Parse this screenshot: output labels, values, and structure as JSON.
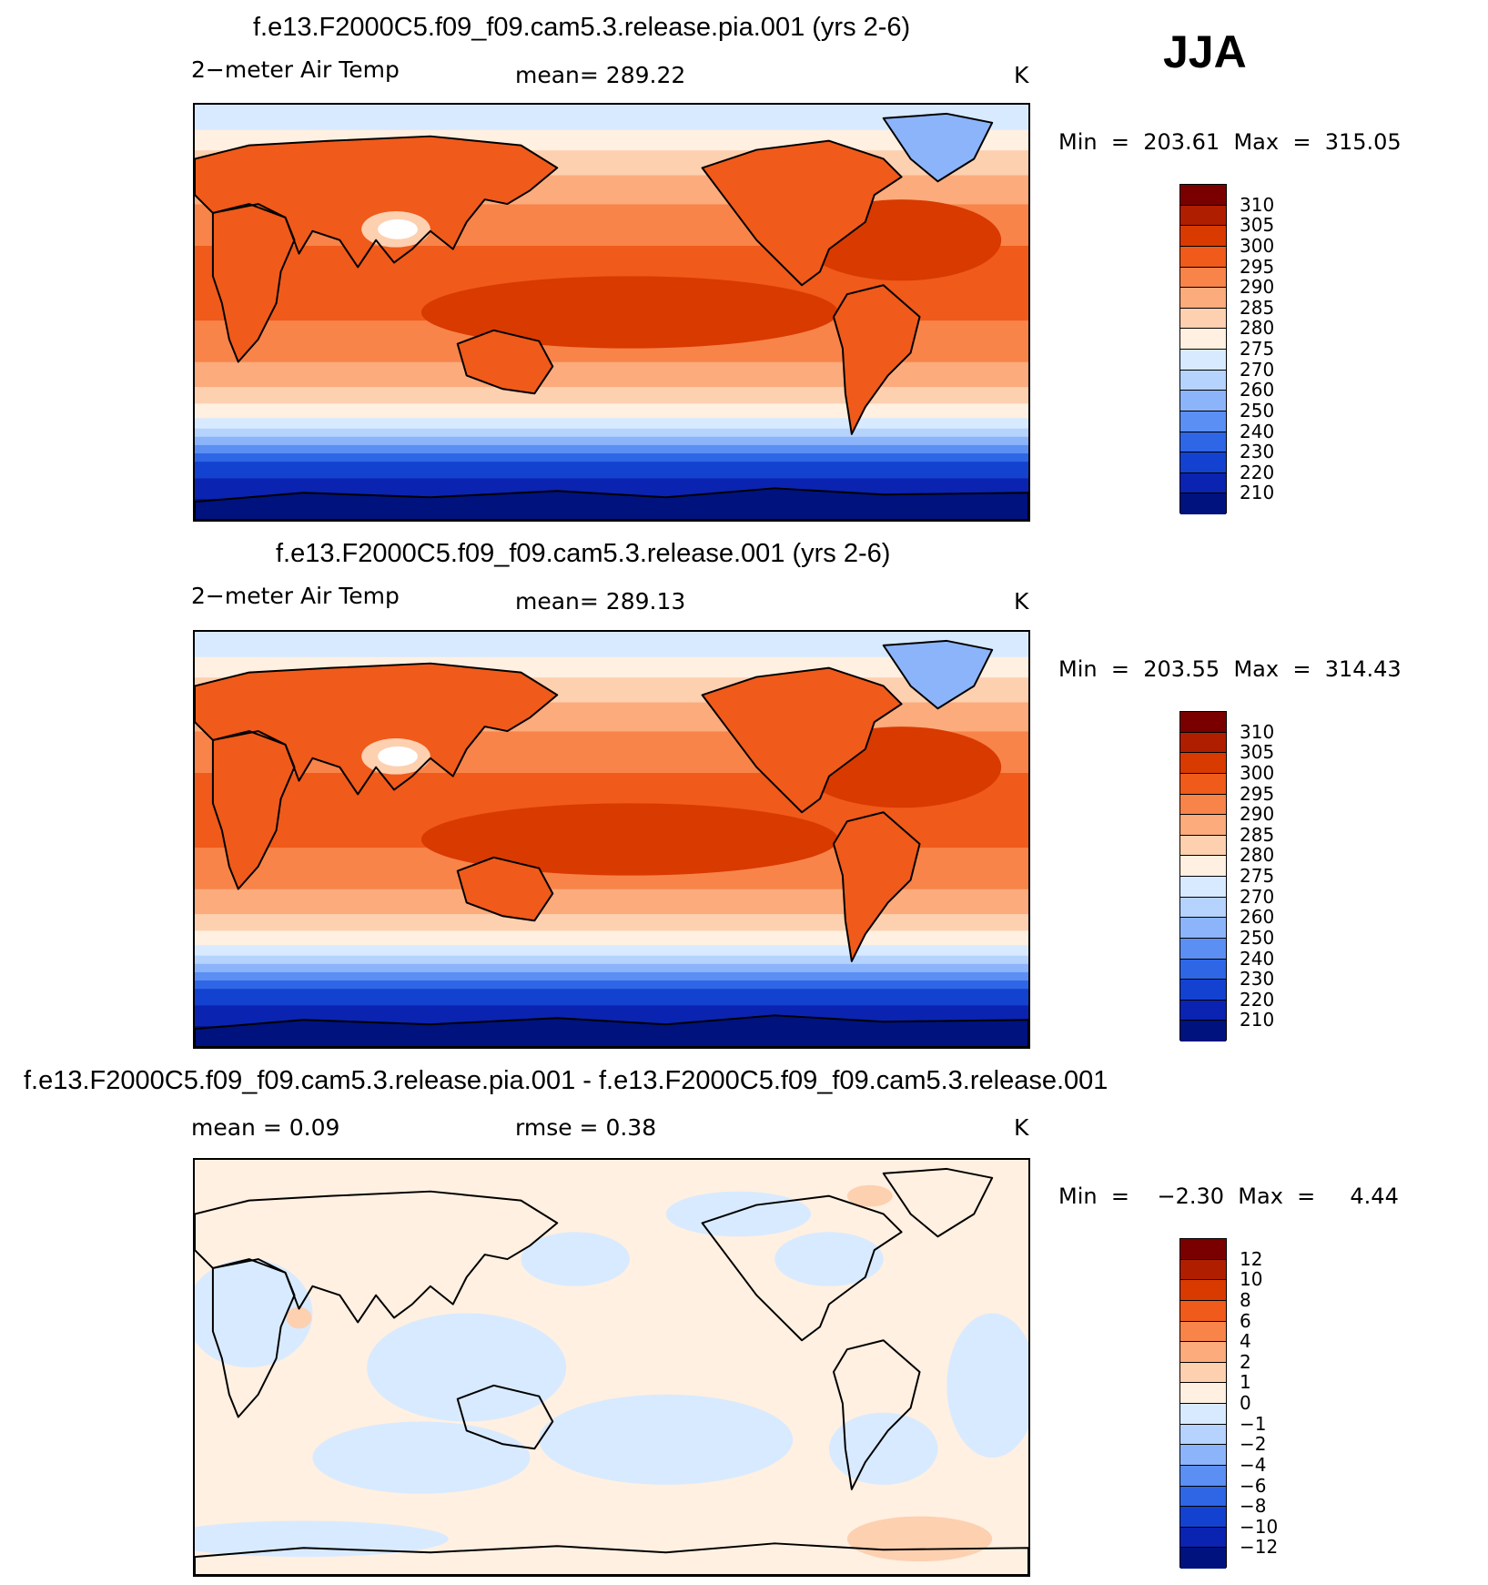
{
  "season": "JJA",
  "panels": [
    {
      "title": "f.e13.F2000C5.f09_f09.cam5.3.release.pia.001 (yrs 2-6)",
      "variable": "2−meter Air Temp",
      "stat": "mean=  289.22",
      "units": "K",
      "minmax": "Min  =  203.61  Max  =  315.05",
      "colorbar": {
        "labels": [
          "310",
          "305",
          "300",
          "295",
          "290",
          "285",
          "280",
          "275",
          "270",
          "260",
          "250",
          "240",
          "230",
          "220",
          "210"
        ],
        "colors": [
          "#7a0000",
          "#b01e00",
          "#d93a00",
          "#f05a1a",
          "#f8844a",
          "#fbab7c",
          "#fdd0b0",
          "#fff0e1",
          "#d8eaff",
          "#b5d3fd",
          "#8cb4fa",
          "#5b8ff3",
          "#2e66e6",
          "#1442d0",
          "#0a23b0",
          "#00127e"
        ]
      },
      "map_style": "absolute"
    },
    {
      "title": "f.e13.F2000C5.f09_f09.cam5.3.release.001 (yrs 2-6)",
      "variable": "2−meter Air Temp",
      "stat": "mean=  289.13",
      "units": "K",
      "minmax": "Min  =  203.55  Max  =  314.43",
      "colorbar": {
        "labels": [
          "310",
          "305",
          "300",
          "295",
          "290",
          "285",
          "280",
          "275",
          "270",
          "260",
          "250",
          "240",
          "230",
          "220",
          "210"
        ],
        "colors": [
          "#7a0000",
          "#b01e00",
          "#d93a00",
          "#f05a1a",
          "#f8844a",
          "#fbab7c",
          "#fdd0b0",
          "#fff0e1",
          "#d8eaff",
          "#b5d3fd",
          "#8cb4fa",
          "#5b8ff3",
          "#2e66e6",
          "#1442d0",
          "#0a23b0",
          "#00127e"
        ]
      },
      "map_style": "absolute"
    },
    {
      "title": "f.e13.F2000C5.f09_f09.cam5.3.release.pia.001 - f.e13.F2000C5.f09_f09.cam5.3.release.001",
      "variable": "mean =      0.09",
      "stat": "rmse  =     0.38",
      "units": "K",
      "minmax": "Min  =    −2.30  Max  =     4.44",
      "colorbar": {
        "labels": [
          "12",
          "10",
          "8",
          "6",
          "4",
          "2",
          "1",
          "0",
          "−1",
          "−2",
          "−4",
          "−6",
          "−8",
          "−10",
          "−12"
        ],
        "colors": [
          "#7a0000",
          "#b01e00",
          "#d93a00",
          "#f05a1a",
          "#f8844a",
          "#fbab7c",
          "#fdd0b0",
          "#fff0e1",
          "#d8eaff",
          "#b5d3fd",
          "#8cb4fa",
          "#5b8ff3",
          "#2e66e6",
          "#1442d0",
          "#0a23b0",
          "#00127e"
        ]
      },
      "map_style": "difference"
    }
  ]
}
